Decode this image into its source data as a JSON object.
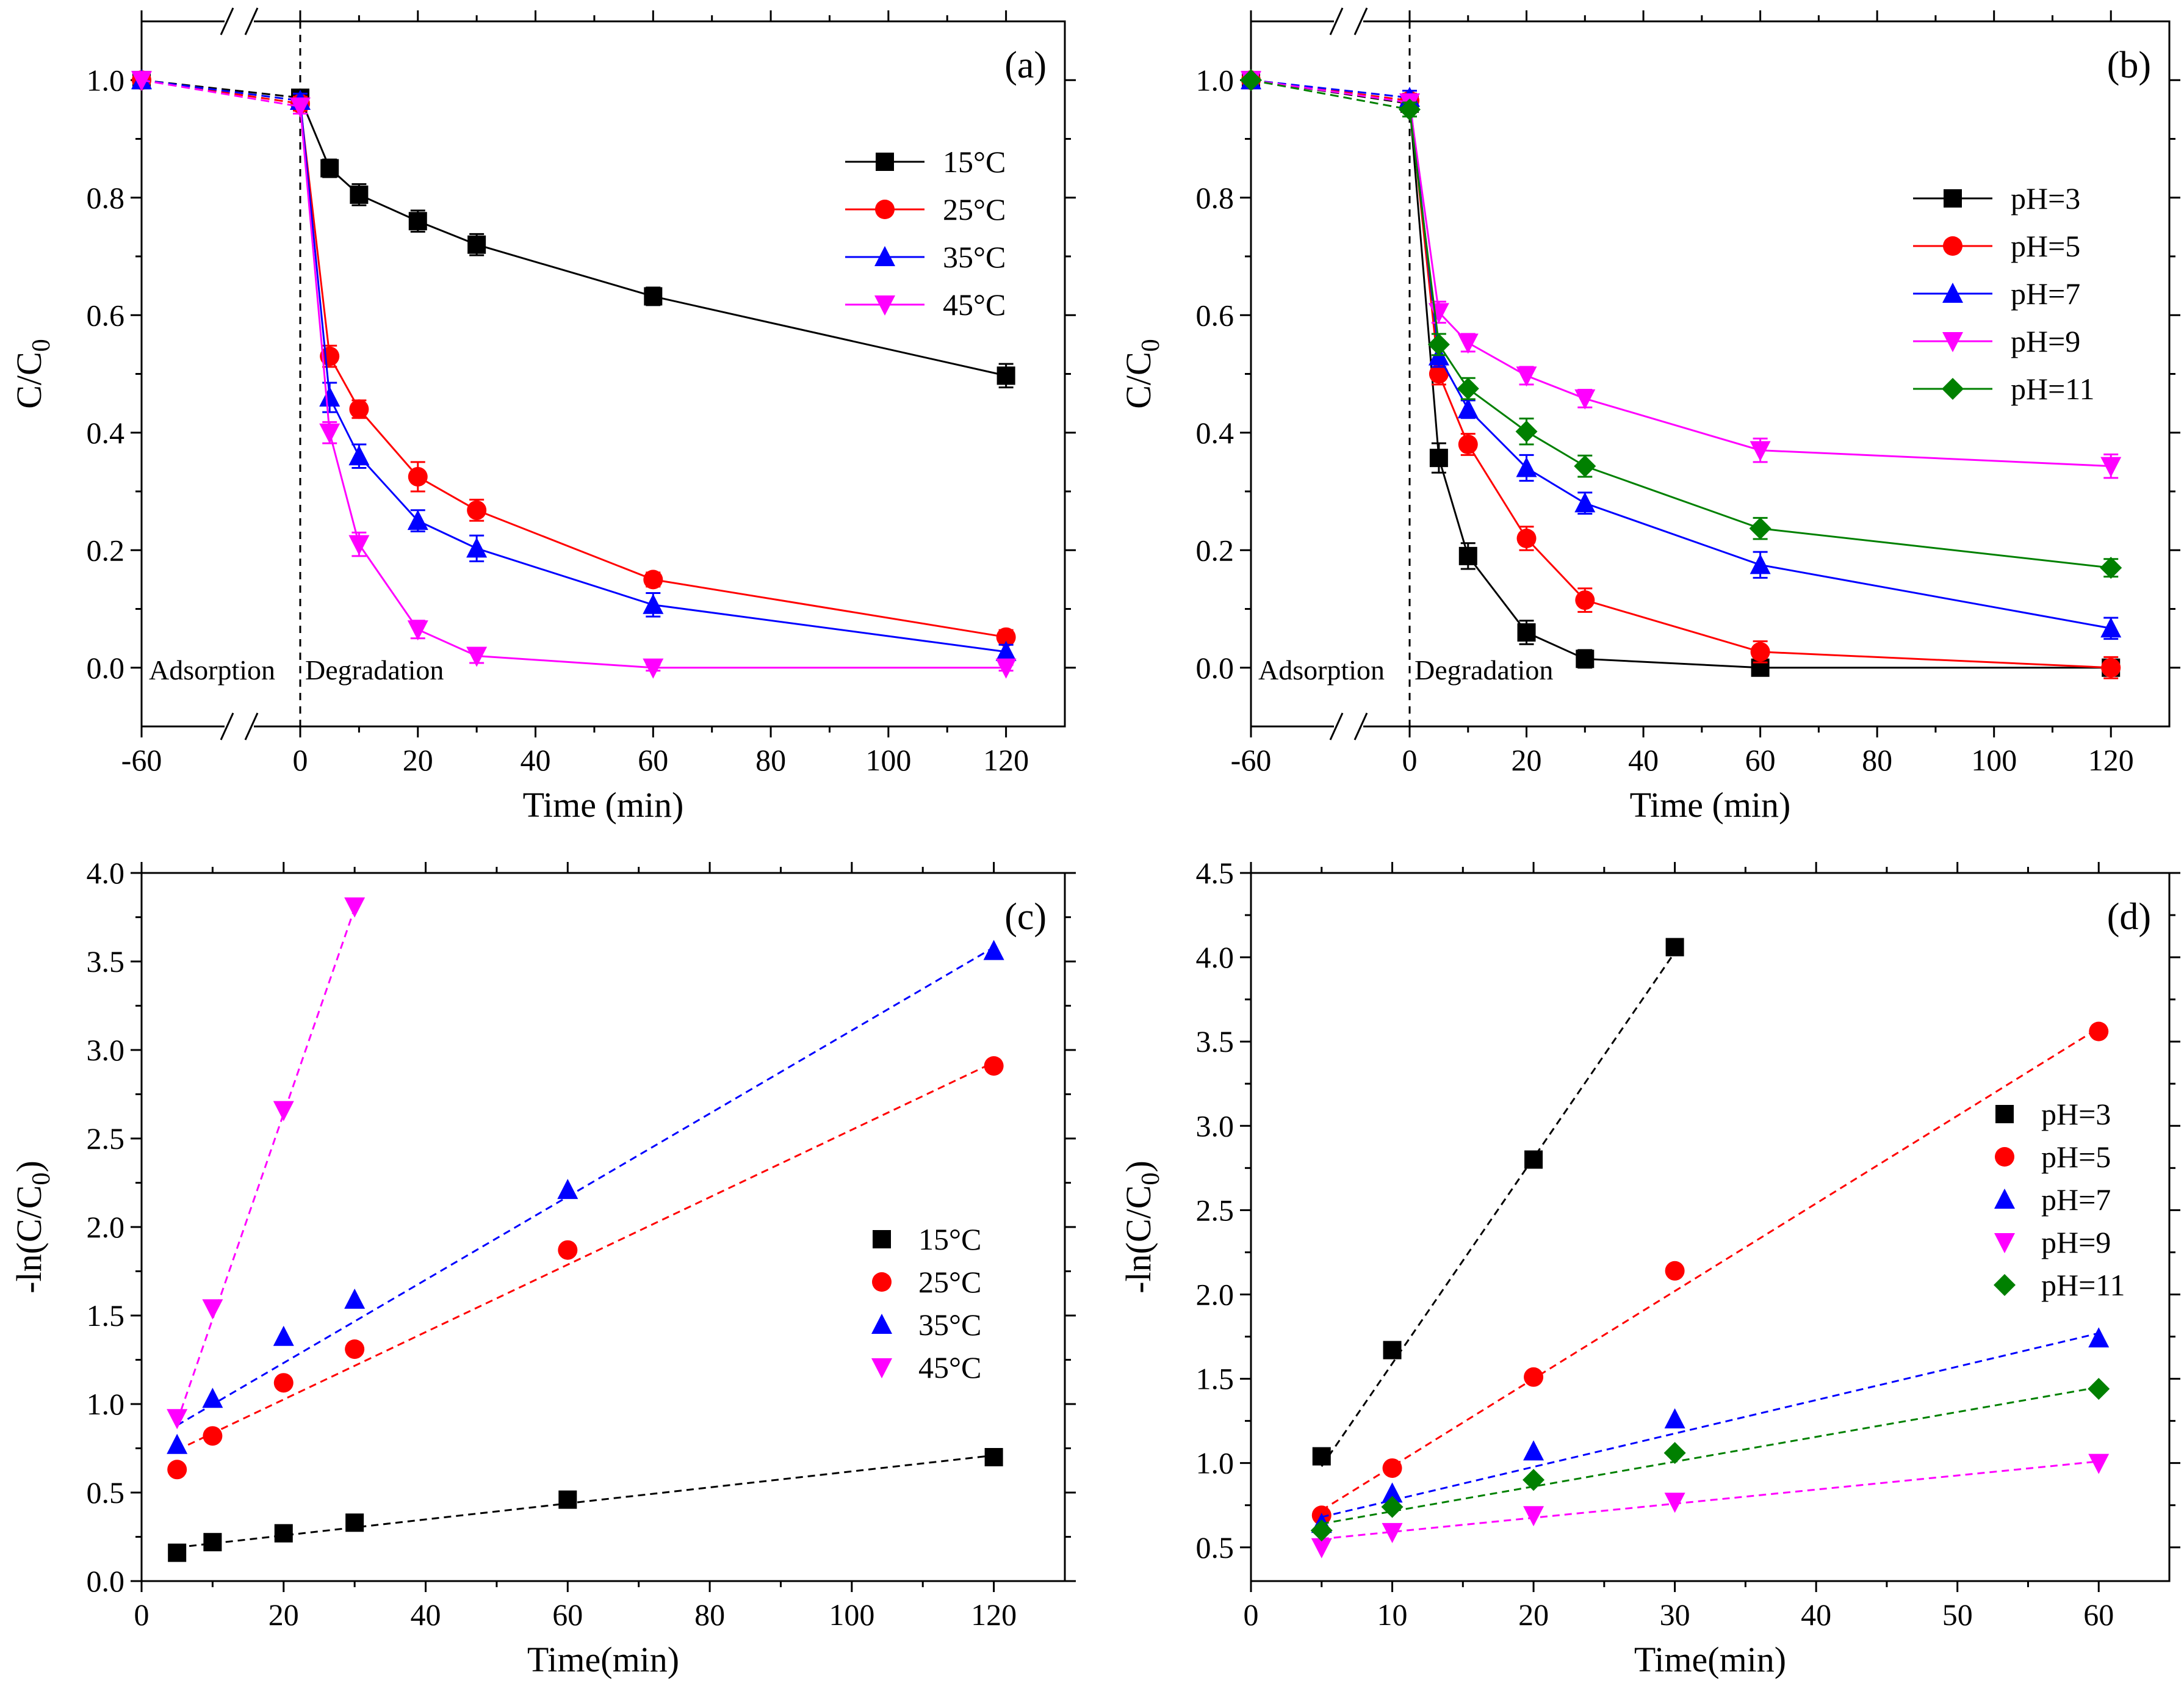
{
  "colors": {
    "black": "#000000",
    "red": "#ff0000",
    "blue": "#0000ff",
    "magenta": "#ff00ff",
    "green": "#008000"
  },
  "chart_data": [
    {
      "type": "line",
      "panel": "(a)",
      "xlabel": "Time (min)",
      "ylabel": "C/C0",
      "ylabel_parts": {
        "main": "C/C",
        "sub": "0"
      },
      "xlim": [
        -60,
        130
      ],
      "ylim": [
        -0.1,
        1.1
      ],
      "x_ticks": [
        -60,
        0,
        20,
        40,
        60,
        80,
        100,
        120
      ],
      "x_tick_labels": [
        "-60",
        "0",
        "20",
        "40",
        "60",
        "80",
        "100",
        "120"
      ],
      "y_ticks": [
        0.0,
        0.2,
        0.4,
        0.6,
        0.8,
        1.0
      ],
      "y_tick_labels": [
        "0.0",
        "0.2",
        "0.4",
        "0.6",
        "0.8",
        "1.0"
      ],
      "axis_break": true,
      "phase_labels": [
        "Adsorption",
        "Degradation"
      ],
      "legend_position": "upper-right",
      "error_bars": true,
      "series": [
        {
          "name": "15°C",
          "color": "#000000",
          "marker": "square",
          "x": [
            -60,
            0,
            5,
            10,
            20,
            30,
            60,
            120
          ],
          "y": [
            1.0,
            0.97,
            0.85,
            0.805,
            0.76,
            0.72,
            0.632,
            0.497
          ],
          "err": [
            0,
            0.012,
            0.015,
            0.018,
            0.018,
            0.018,
            0.015,
            0.02
          ]
        },
        {
          "name": "25°C",
          "color": "#ff0000",
          "marker": "circle",
          "x": [
            -60,
            0,
            5,
            10,
            20,
            30,
            60,
            120
          ],
          "y": [
            1.0,
            0.96,
            0.53,
            0.44,
            0.325,
            0.268,
            0.15,
            0.052
          ],
          "err": [
            0,
            0.012,
            0.018,
            0.015,
            0.025,
            0.018,
            0.012,
            0.012
          ]
        },
        {
          "name": "35°C",
          "color": "#0000ff",
          "marker": "triangle-up",
          "x": [
            -60,
            0,
            5,
            10,
            20,
            30,
            60,
            120
          ],
          "y": [
            1.0,
            0.965,
            0.46,
            0.36,
            0.25,
            0.203,
            0.107,
            0.027
          ],
          "err": [
            0,
            0.012,
            0.025,
            0.02,
            0.018,
            0.022,
            0.02,
            0.012
          ]
        },
        {
          "name": "45°C",
          "color": "#ff00ff",
          "marker": "triangle-down",
          "x": [
            -60,
            0,
            5,
            10,
            20,
            30,
            60,
            120
          ],
          "y": [
            1.0,
            0.955,
            0.4,
            0.21,
            0.065,
            0.02,
            0.0,
            0.0
          ],
          "err": [
            0,
            0.012,
            0.018,
            0.02,
            0.015,
            0.012,
            0.005,
            0.005
          ]
        }
      ]
    },
    {
      "type": "line",
      "panel": "(b)",
      "xlabel": "Time (min)",
      "ylabel": "C/C0",
      "ylabel_parts": {
        "main": "C/C",
        "sub": "0"
      },
      "xlim": [
        -60,
        130
      ],
      "ylim": [
        -0.1,
        1.1
      ],
      "x_ticks": [
        -60,
        0,
        20,
        40,
        60,
        80,
        100,
        120
      ],
      "x_tick_labels": [
        "-60",
        "0",
        "20",
        "40",
        "60",
        "80",
        "100",
        "120"
      ],
      "y_ticks": [
        0.0,
        0.2,
        0.4,
        0.6,
        0.8,
        1.0
      ],
      "y_tick_labels": [
        "0.0",
        "0.2",
        "0.4",
        "0.6",
        "0.8",
        "1.0"
      ],
      "axis_break": true,
      "phase_labels": [
        "Adsorption",
        "Degradation"
      ],
      "legend_position": "right",
      "error_bars": true,
      "series": [
        {
          "name": "pH=3",
          "color": "#000000",
          "marker": "square",
          "x": [
            -60,
            0,
            5,
            10,
            20,
            30,
            60,
            120
          ],
          "y": [
            1.0,
            0.96,
            0.357,
            0.19,
            0.06,
            0.015,
            0.0,
            0.0
          ],
          "err": [
            0,
            0.012,
            0.025,
            0.022,
            0.02,
            0.015,
            0.008,
            0.008
          ]
        },
        {
          "name": "pH=5",
          "color": "#ff0000",
          "marker": "circle",
          "x": [
            -60,
            0,
            5,
            10,
            20,
            30,
            60,
            120
          ],
          "y": [
            1.0,
            0.965,
            0.5,
            0.38,
            0.22,
            0.115,
            0.027,
            0.0
          ],
          "err": [
            0,
            0.012,
            0.018,
            0.018,
            0.02,
            0.02,
            0.018,
            0.018
          ]
        },
        {
          "name": "pH=7",
          "color": "#0000ff",
          "marker": "triangle-up",
          "x": [
            -60,
            0,
            5,
            10,
            20,
            30,
            60,
            120
          ],
          "y": [
            1.0,
            0.97,
            0.53,
            0.44,
            0.34,
            0.28,
            0.175,
            0.067
          ],
          "err": [
            0,
            0.012,
            0.018,
            0.015,
            0.022,
            0.018,
            0.022,
            0.018
          ]
        },
        {
          "name": "pH=9",
          "color": "#ff00ff",
          "marker": "triangle-down",
          "x": [
            -60,
            0,
            5,
            10,
            20,
            30,
            60,
            120
          ],
          "y": [
            1.0,
            0.962,
            0.605,
            0.553,
            0.497,
            0.458,
            0.37,
            0.343
          ],
          "err": [
            0,
            0.012,
            0.018,
            0.015,
            0.015,
            0.015,
            0.02,
            0.02
          ]
        },
        {
          "name": "pH=11",
          "color": "#008000",
          "marker": "diamond",
          "x": [
            -60,
            0,
            5,
            10,
            20,
            30,
            60,
            120
          ],
          "y": [
            1.0,
            0.95,
            0.55,
            0.475,
            0.402,
            0.343,
            0.237,
            0.17
          ],
          "err": [
            0,
            0.012,
            0.018,
            0.018,
            0.022,
            0.018,
            0.018,
            0.015
          ]
        }
      ]
    },
    {
      "type": "scatter",
      "panel": "(c)",
      "xlabel": "Time(min)",
      "ylabel": "-ln(C/C0)",
      "ylabel_parts": {
        "main": "-ln(C/C",
        "sub": "0",
        "tail": ")"
      },
      "xlim": [
        0,
        130
      ],
      "ylim": [
        0,
        4.0
      ],
      "x_ticks": [
        0,
        20,
        40,
        60,
        80,
        100,
        120
      ],
      "x_tick_labels": [
        "0",
        "20",
        "40",
        "60",
        "80",
        "100",
        "120"
      ],
      "y_ticks": [
        0.0,
        0.5,
        1.0,
        1.5,
        2.0,
        2.5,
        3.0,
        3.5,
        4.0
      ],
      "y_tick_labels": [
        "0.0",
        "0.5",
        "1.0",
        "1.5",
        "2.0",
        "2.5",
        "3.0",
        "3.5",
        "4.0"
      ],
      "legend_position": "right",
      "fit_lines": "dashed",
      "series": [
        {
          "name": "15°C",
          "color": "#000000",
          "marker": "square",
          "x": [
            5,
            10,
            20,
            30,
            60,
            120
          ],
          "y": [
            0.16,
            0.22,
            0.27,
            0.33,
            0.46,
            0.7
          ],
          "fit": {
            "x": [
              5,
              120
            ],
            "y": [
              0.19,
              0.71
            ]
          }
        },
        {
          "name": "25°C",
          "color": "#ff0000",
          "marker": "circle",
          "x": [
            5,
            10,
            20,
            30,
            60,
            120
          ],
          "y": [
            0.63,
            0.82,
            1.12,
            1.31,
            1.87,
            2.91
          ],
          "fit": {
            "x": [
              5,
              120
            ],
            "y": [
              0.74,
              2.93
            ]
          }
        },
        {
          "name": "35°C",
          "color": "#0000ff",
          "marker": "triangle-up",
          "x": [
            5,
            10,
            20,
            30,
            60,
            120
          ],
          "y": [
            0.77,
            1.03,
            1.38,
            1.59,
            2.21,
            3.56
          ],
          "fit": {
            "x": [
              5,
              120
            ],
            "y": [
              0.88,
              3.58
            ]
          }
        },
        {
          "name": "45°C",
          "color": "#ff00ff",
          "marker": "triangle-down",
          "x": [
            5,
            10,
            20,
            30
          ],
          "y": [
            0.92,
            1.54,
            2.66,
            3.81
          ],
          "fit": {
            "x": [
              5,
              30
            ],
            "y": [
              0.9,
              3.8
            ]
          }
        }
      ]
    },
    {
      "type": "scatter",
      "panel": "(d)",
      "xlabel": "Time(min)",
      "ylabel": "-ln(C/C0)",
      "ylabel_parts": {
        "main": "-ln(C/C",
        "sub": "0",
        "tail": ")"
      },
      "xlim": [
        0,
        65
      ],
      "ylim": [
        0.3,
        4.5
      ],
      "x_ticks": [
        0,
        10,
        20,
        30,
        40,
        50,
        60
      ],
      "x_tick_labels": [
        "0",
        "10",
        "20",
        "30",
        "40",
        "50",
        "60"
      ],
      "y_ticks": [
        0.5,
        1.0,
        1.5,
        2.0,
        2.5,
        3.0,
        3.5,
        4.0,
        4.5
      ],
      "y_tick_labels": [
        "0.5",
        "1.0",
        "1.5",
        "2.0",
        "2.5",
        "3.0",
        "3.5",
        "4.0",
        "4.5"
      ],
      "legend_position": "right",
      "fit_lines": "dashed",
      "series": [
        {
          "name": "pH=3",
          "color": "#000000",
          "marker": "square",
          "x": [
            5,
            10,
            20,
            30
          ],
          "y": [
            1.04,
            1.67,
            2.8,
            4.06
          ],
          "fit": {
            "x": [
              5,
              30
            ],
            "y": [
              0.98,
              4.03
            ]
          }
        },
        {
          "name": "pH=5",
          "color": "#ff0000",
          "marker": "circle",
          "x": [
            5,
            10,
            20,
            30,
            60
          ],
          "y": [
            0.69,
            0.97,
            1.51,
            2.14,
            3.56
          ],
          "fit": {
            "x": [
              5,
              60
            ],
            "y": [
              0.72,
              3.58
            ]
          }
        },
        {
          "name": "pH=7",
          "color": "#0000ff",
          "marker": "triangle-up",
          "x": [
            5,
            10,
            20,
            30,
            60
          ],
          "y": [
            0.64,
            0.82,
            1.07,
            1.26,
            1.74
          ],
          "fit": {
            "x": [
              5,
              60
            ],
            "y": [
              0.68,
              1.77
            ]
          }
        },
        {
          "name": "pH=9",
          "color": "#ff00ff",
          "marker": "triangle-down",
          "x": [
            5,
            10,
            20,
            30,
            60
          ],
          "y": [
            0.5,
            0.59,
            0.69,
            0.77,
            1.0
          ],
          "fit": {
            "x": [
              5,
              60
            ],
            "y": [
              0.55,
              1.01
            ]
          }
        },
        {
          "name": "pH=11",
          "color": "#008000",
          "marker": "diamond",
          "x": [
            5,
            10,
            20,
            30,
            60
          ],
          "y": [
            0.6,
            0.74,
            0.9,
            1.06,
            1.44
          ],
          "fit": {
            "x": [
              5,
              60
            ],
            "y": [
              0.64,
              1.45
            ]
          }
        }
      ]
    }
  ]
}
